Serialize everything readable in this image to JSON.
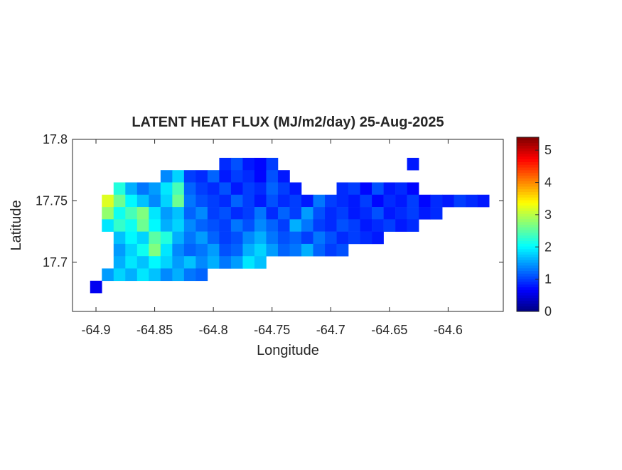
{
  "chart_data": {
    "type": "heatmap",
    "title": "LATENT HEAT FLUX (MJ/m2/day) 25-Aug-2025",
    "x_label": "Longitude",
    "y_label": "Latitude",
    "xlim": [
      -64.92,
      -64.553
    ],
    "ylim": [
      17.66,
      17.8
    ],
    "xticks": [
      -64.9,
      -64.85,
      -64.8,
      -64.75,
      -64.7,
      -64.65,
      -64.6
    ],
    "yticks": [
      17.7,
      17.75,
      17.8
    ],
    "colormap": "jet",
    "colorbar": {
      "lim": [
        0,
        5.4
      ],
      "ticks": [
        0,
        1,
        2,
        3,
        4,
        5
      ]
    },
    "x": [
      -64.9,
      -64.89,
      -64.88,
      -64.87,
      -64.86,
      -64.85,
      -64.84,
      -64.83,
      -64.82,
      -64.81,
      -64.8,
      -64.79,
      -64.78,
      -64.77,
      -64.76,
      -64.75,
      -64.74,
      -64.73,
      -64.72,
      -64.71,
      -64.7,
      -64.69,
      -64.68,
      -64.67,
      -64.66,
      -64.65,
      -64.64,
      -64.63,
      -64.62,
      -64.61,
      -64.6,
      -64.59,
      -64.58,
      -64.57
    ],
    "y": [
      17.78,
      17.77,
      17.76,
      17.75,
      17.74,
      17.73,
      17.72,
      17.71,
      17.7,
      17.69,
      17.68
    ],
    "z": [
      [
        null,
        null,
        null,
        null,
        null,
        null,
        null,
        null,
        null,
        null,
        null,
        0.9,
        1.1,
        0.8,
        0.7,
        1.0,
        null,
        null,
        null,
        null,
        null,
        null,
        null,
        null,
        null,
        null,
        null,
        0.8,
        null,
        null,
        null,
        null,
        null,
        null
      ],
      [
        null,
        null,
        null,
        null,
        null,
        null,
        1.4,
        1.8,
        1.0,
        0.9,
        1.2,
        0.8,
        1.0,
        0.9,
        0.7,
        1.1,
        0.8,
        null,
        null,
        null,
        null,
        null,
        null,
        null,
        null,
        null,
        null,
        null,
        null,
        null,
        null,
        null,
        null,
        null
      ],
      [
        null,
        null,
        2.2,
        1.6,
        1.3,
        1.5,
        1.9,
        2.4,
        1.2,
        1.0,
        0.9,
        1.1,
        0.8,
        1.0,
        0.9,
        1.2,
        1.0,
        0.8,
        null,
        null,
        null,
        0.9,
        1.0,
        0.7,
        1.1,
        0.8,
        0.9,
        0.7,
        null,
        null,
        null,
        null,
        null,
        null
      ],
      [
        null,
        3.2,
        2.6,
        2.0,
        1.7,
        1.4,
        1.8,
        2.6,
        1.3,
        1.1,
        1.0,
        0.9,
        1.2,
        1.0,
        0.8,
        1.1,
        0.9,
        1.0,
        0.8,
        1.3,
        1.0,
        0.9,
        0.8,
        1.0,
        0.7,
        0.9,
        0.8,
        1.0,
        0.7,
        0.9,
        0.8,
        1.0,
        0.9,
        0.8
      ],
      [
        null,
        2.8,
        2.1,
        2.4,
        2.7,
        1.9,
        1.5,
        1.7,
        1.2,
        1.4,
        1.0,
        1.1,
        0.9,
        1.0,
        1.3,
        0.9,
        1.2,
        1.0,
        1.5,
        1.1,
        0.9,
        1.0,
        0.8,
        0.9,
        1.1,
        0.8,
        0.9,
        1.0,
        0.8,
        0.9,
        null,
        null,
        null,
        null
      ],
      [
        null,
        1.9,
        2.3,
        2.1,
        2.6,
        2.0,
        1.6,
        1.8,
        1.4,
        1.2,
        1.1,
        1.0,
        1.3,
        1.1,
        1.4,
        1.2,
        1.0,
        1.6,
        1.3,
        1.0,
        0.9,
        1.1,
        1.0,
        0.8,
        0.9,
        1.0,
        0.8,
        0.9,
        null,
        null,
        null,
        null,
        null,
        null
      ],
      [
        null,
        null,
        1.7,
        2.0,
        1.8,
        2.5,
        2.2,
        1.6,
        1.3,
        1.5,
        1.2,
        1.0,
        1.1,
        1.4,
        1.6,
        1.3,
        1.1,
        1.2,
        1.0,
        1.3,
        1.1,
        0.9,
        1.0,
        0.9,
        0.8,
        null,
        null,
        null,
        null,
        null,
        null,
        null,
        null,
        null
      ],
      [
        null,
        null,
        1.5,
        1.8,
        2.1,
        2.7,
        1.9,
        1.4,
        1.2,
        1.3,
        1.5,
        1.1,
        1.2,
        1.6,
        1.8,
        1.5,
        1.2,
        1.3,
        1.6,
        1.2,
        1.0,
        1.1,
        null,
        null,
        null,
        null,
        null,
        null,
        null,
        null,
        null,
        null,
        null,
        null
      ],
      [
        null,
        null,
        1.6,
        1.9,
        1.7,
        2.0,
        1.8,
        1.5,
        1.7,
        1.4,
        1.6,
        1.3,
        1.5,
        1.9,
        1.7,
        null,
        null,
        null,
        null,
        null,
        null,
        null,
        null,
        null,
        null,
        null,
        null,
        null,
        null,
        null,
        null,
        null,
        null,
        null
      ],
      [
        null,
        1.5,
        1.8,
        1.6,
        1.9,
        1.7,
        1.4,
        1.6,
        1.3,
        1.2,
        null,
        null,
        null,
        null,
        null,
        null,
        null,
        null,
        null,
        null,
        null,
        null,
        null,
        null,
        null,
        null,
        null,
        null,
        null,
        null,
        null,
        null,
        null,
        null
      ],
      [
        0.6,
        null,
        null,
        null,
        null,
        null,
        null,
        null,
        null,
        null,
        null,
        null,
        null,
        null,
        null,
        null,
        null,
        null,
        null,
        null,
        null,
        null,
        null,
        null,
        null,
        null,
        null,
        null,
        null,
        null,
        null,
        null,
        null,
        null
      ]
    ]
  }
}
